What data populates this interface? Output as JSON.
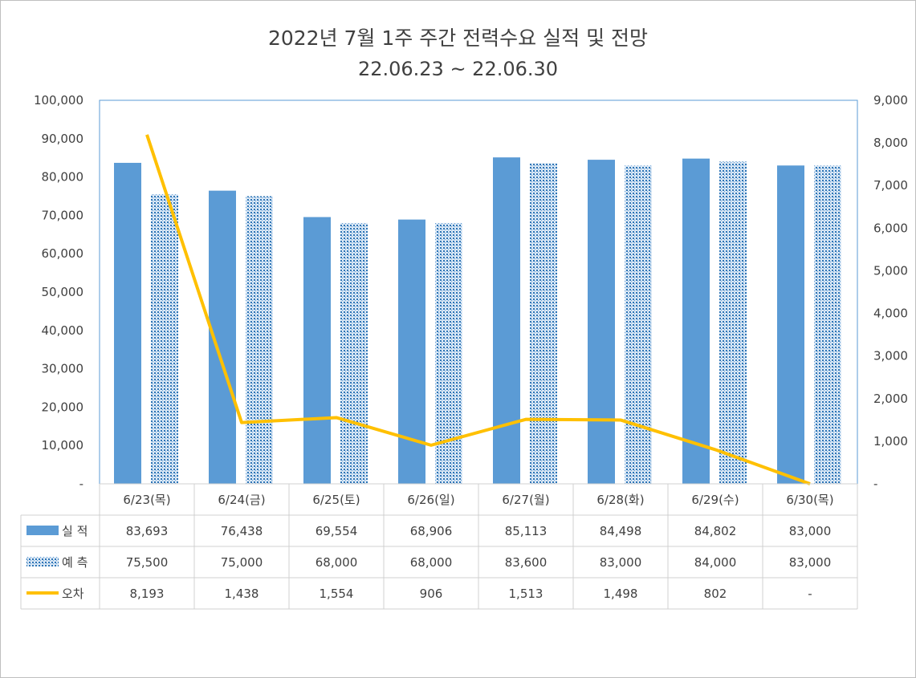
{
  "chart_data": {
    "type": "bar",
    "title": "2022년 7월 1주 주간 전력수요 실적 및 전망",
    "subtitle": "22.06.23 ~ 22.06.30",
    "categories": [
      "6/23(목)",
      "6/24(금)",
      "6/25(토)",
      "6/26(일)",
      "6/27(월)",
      "6/28(화)",
      "6/29(수)",
      "6/30(목)"
    ],
    "series": [
      {
        "name": "실 적",
        "kind": "bar",
        "axis": "left",
        "color": "#5b9bd5",
        "values": [
          83693,
          76438,
          69554,
          68906,
          85113,
          84498,
          84802,
          83000
        ],
        "labels": [
          "83,693",
          "76,438",
          "69,554",
          "68,906",
          "85,113",
          "84,498",
          "84,802",
          "83,000"
        ]
      },
      {
        "name": "예 측",
        "kind": "bar-pattern",
        "axis": "left",
        "color": "#2e75b6",
        "values": [
          75500,
          75000,
          68000,
          68000,
          83600,
          83000,
          84000,
          83000
        ],
        "labels": [
          "75,500",
          "75,000",
          "68,000",
          "68,000",
          "83,600",
          "83,000",
          "84,000",
          "83,000"
        ]
      },
      {
        "name": "오차",
        "kind": "line",
        "axis": "right",
        "color": "#ffc000",
        "values": [
          8193,
          1438,
          1554,
          906,
          1513,
          1498,
          802,
          0
        ],
        "labels": [
          "8,193",
          "1,438",
          "1,554",
          "906",
          "1,513",
          "1,498",
          "802",
          "-"
        ]
      }
    ],
    "y_left": {
      "min": 0,
      "max": 100000,
      "step": 10000,
      "tick_labels": [
        "-",
        "10,000",
        "20,000",
        "30,000",
        "40,000",
        "50,000",
        "60,000",
        "70,000",
        "80,000",
        "90,000",
        "100,000"
      ]
    },
    "y_right": {
      "min": 0,
      "max": 9000,
      "step": 1000,
      "tick_labels": [
        "-",
        "1,000",
        "2,000",
        "3,000",
        "4,000",
        "5,000",
        "6,000",
        "7,000",
        "8,000",
        "9,000"
      ]
    },
    "grid": true,
    "legend": "data-table"
  }
}
